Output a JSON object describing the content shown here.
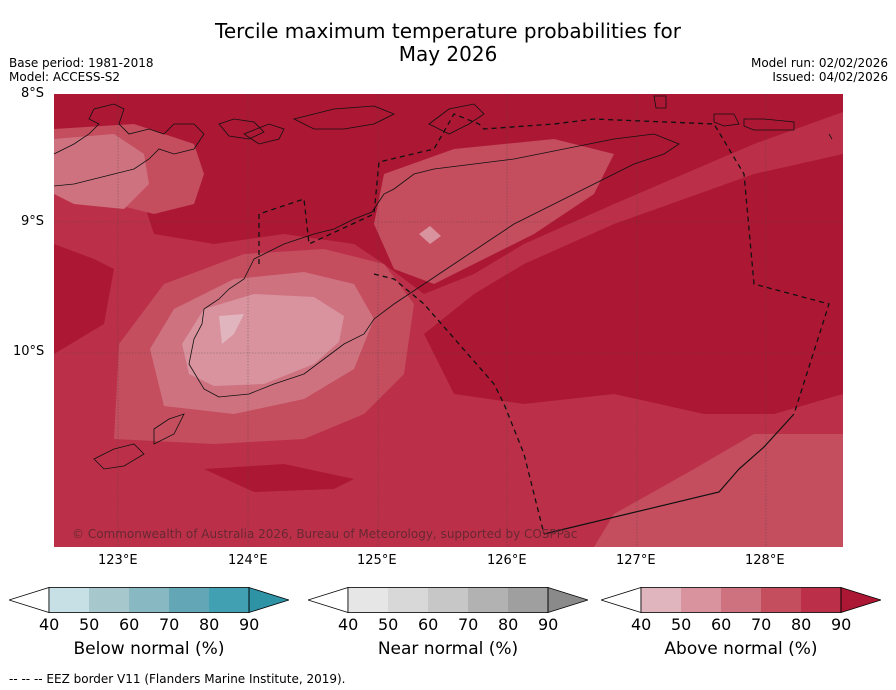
{
  "title_line1": "Tercile maximum temperature probabilities for",
  "title_line2": "May 2026",
  "base_period": "Base period: 1981-2018",
  "model": "Model: ACCESS-S2",
  "model_run": "Model run: 02/02/2026",
  "issued": "Issued: 04/02/2026",
  "lat_ticks": [
    "8°S",
    "9°S",
    "10°S"
  ],
  "lon_ticks": [
    "123°E",
    "124°E",
    "125°E",
    "126°E",
    "127°E",
    "128°E"
  ],
  "copyright": "© Commonwealth of Australia 2026, Bureau of Meteorology, supported by COSPPac",
  "colorbars": [
    {
      "label": "Below normal (%)",
      "ticks": [
        "40",
        "50",
        "60",
        "70",
        "80",
        "90"
      ],
      "colors": [
        "#ffffff",
        "#c6e0e6",
        "#a6c8cd",
        "#88b8c2",
        "#63a6b5",
        "#42a0b3",
        "#2f93a6"
      ]
    },
    {
      "label": "Near normal (%)",
      "ticks": [
        "40",
        "50",
        "60",
        "70",
        "80",
        "90"
      ],
      "colors": [
        "#ffffff",
        "#e6e6e6",
        "#d8d8d8",
        "#c7c7c7",
        "#b2b2b2",
        "#9f9f9f",
        "#8a8a8a"
      ]
    },
    {
      "label": "Above normal (%)",
      "ticks": [
        "40",
        "50",
        "60",
        "70",
        "80",
        "90"
      ],
      "colors": [
        "#ffffff",
        "#e1b5bd",
        "#d8939e",
        "#cf7280",
        "#c44d5e",
        "#bb3048",
        "#ac1734"
      ]
    }
  ],
  "footnote": "--  --  -- EEZ border V11 (Flanders Marine Institute, 2019)."
}
